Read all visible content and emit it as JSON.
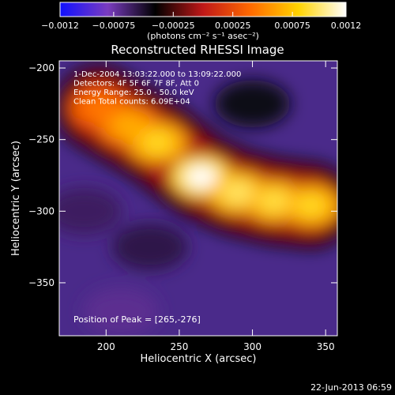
{
  "chart_data": {
    "type": "heatmap",
    "title": "Reconstructed RHESSI Image",
    "xlabel": "Heliocentric X (arcsec)",
    "ylabel": "Heliocentric Y (arcsec)",
    "xlim": [
      168,
      358
    ],
    "ylim": [
      -387,
      -195
    ],
    "xticks": [
      200,
      250,
      300,
      350
    ],
    "xtick_labels": [
      "200",
      "250",
      "300",
      "350"
    ],
    "yticks": [
      -200,
      -250,
      -300,
      -350
    ],
    "ytick_labels": [
      "−200",
      "−250",
      "−300",
      "−350"
    ],
    "colorbar": {
      "range": [
        -0.0012,
        0.0012
      ],
      "ticks": [
        -0.0012,
        -0.00075,
        -0.00025,
        0.00025,
        0.00075,
        0.0012
      ],
      "tick_labels": [
        "−0.0012",
        "−0.00075",
        "−0.00025",
        "0.00025",
        "0.00075",
        "0.0012"
      ],
      "unit_label": "(photons cm⁻² s⁻¹ asec⁻²)",
      "colors": [
        "#1010ff",
        "#7a3cc0",
        "#000000",
        "#c01818",
        "#ff6a00",
        "#ffd300",
        "#ffffff"
      ]
    },
    "annotations": [
      "1-Dec-2004 13:03:22.000 to 13:09:22.000",
      "Detectors: 4F 5F 6F 7F 8F, Att 0",
      "Energy Range: 25.0 - 50.0 keV",
      "Clean     Total counts: 6.09E+04"
    ],
    "peak_label": "Position of Peak = [265,-276]",
    "peak": [
      265,
      -276
    ],
    "ridge": [
      {
        "x": 195,
        "y": -228,
        "v": 0.00045
      },
      {
        "x": 215,
        "y": -240,
        "v": 0.00065
      },
      {
        "x": 235,
        "y": -252,
        "v": 0.00085
      },
      {
        "x": 265,
        "y": -276,
        "v": 0.0012
      },
      {
        "x": 290,
        "y": -287,
        "v": 0.00095
      },
      {
        "x": 315,
        "y": -293,
        "v": 0.0009
      },
      {
        "x": 340,
        "y": -296,
        "v": 0.00085
      }
    ],
    "negative_regions": [
      {
        "x": 185,
        "y": -300,
        "v": -0.0006
      },
      {
        "x": 230,
        "y": -325,
        "v": -0.00055
      },
      {
        "x": 210,
        "y": -370,
        "v": -0.0007
      },
      {
        "x": 300,
        "y": -225,
        "v": -0.00045
      }
    ]
  },
  "timestamp": "22-Jun-2013 06:59"
}
